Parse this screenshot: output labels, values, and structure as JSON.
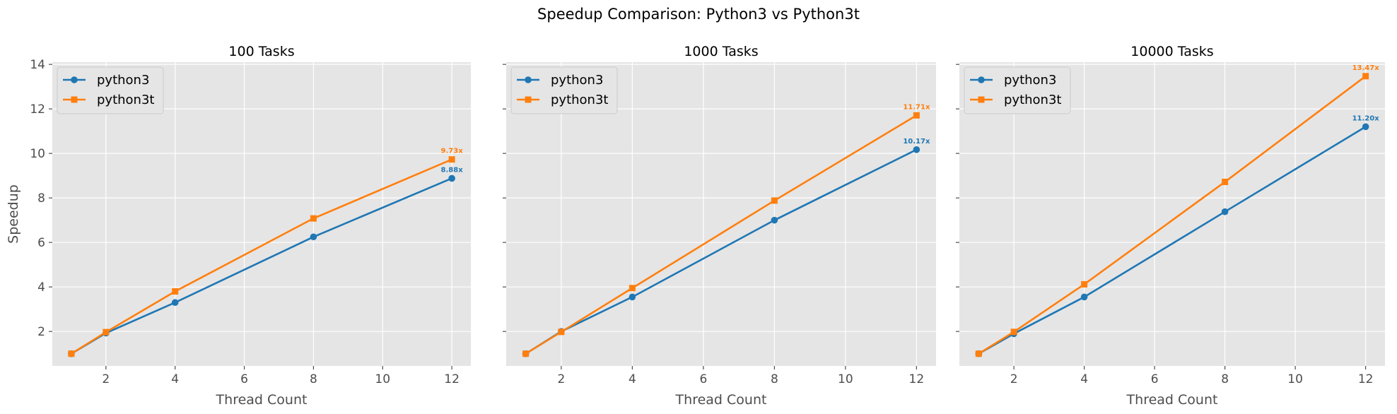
{
  "figure": {
    "title": "Speedup Comparison: Python3 vs Python3t"
  },
  "colors": {
    "python3": "#1f77b4",
    "python3t": "#ff7f0e",
    "plot_bg": "#e5e5e5",
    "grid": "#ffffff"
  },
  "chart_data": [
    {
      "type": "line",
      "title": "100 Tasks",
      "xlabel": "Thread Count",
      "ylabel": "Speedup",
      "x": [
        1,
        2,
        4,
        8,
        12
      ],
      "xlim": [
        0.45,
        12.55
      ],
      "ylim": [
        0.45,
        14.1
      ],
      "xticks": [
        2,
        4,
        6,
        8,
        10,
        12
      ],
      "yticks": [
        2,
        4,
        6,
        8,
        10,
        12,
        14
      ],
      "grid": true,
      "legend_position": "upper-left",
      "series": [
        {
          "name": "python3",
          "marker": "circle",
          "values": [
            1.0,
            1.93,
            3.3,
            6.25,
            8.88
          ],
          "end_label": "8.88x"
        },
        {
          "name": "python3t",
          "marker": "square",
          "values": [
            1.0,
            1.97,
            3.8,
            7.08,
            9.73
          ],
          "end_label": "9.73x"
        }
      ]
    },
    {
      "type": "line",
      "title": "1000 Tasks",
      "xlabel": "Thread Count",
      "ylabel": "",
      "x": [
        1,
        2,
        4,
        8,
        12
      ],
      "xlim": [
        0.45,
        12.55
      ],
      "ylim": [
        0.45,
        14.1
      ],
      "xticks": [
        2,
        4,
        6,
        8,
        10,
        12
      ],
      "yticks": [
        2,
        4,
        6,
        8,
        10,
        12,
        14
      ],
      "grid": true,
      "legend_position": "upper-left",
      "series": [
        {
          "name": "python3",
          "marker": "circle",
          "values": [
            1.0,
            2.0,
            3.55,
            7.0,
            10.17
          ],
          "end_label": "10.17x"
        },
        {
          "name": "python3t",
          "marker": "square",
          "values": [
            1.0,
            1.98,
            3.95,
            7.88,
            11.71
          ],
          "end_label": "11.71x"
        }
      ]
    },
    {
      "type": "line",
      "title": "10000 Tasks",
      "xlabel": "Thread Count",
      "ylabel": "",
      "x": [
        1,
        2,
        4,
        8,
        12
      ],
      "xlim": [
        0.45,
        12.55
      ],
      "ylim": [
        0.45,
        14.1
      ],
      "xticks": [
        2,
        4,
        6,
        8,
        10,
        12
      ],
      "yticks": [
        2,
        4,
        6,
        8,
        10,
        12,
        14
      ],
      "grid": true,
      "legend_position": "upper-left",
      "series": [
        {
          "name": "python3",
          "marker": "circle",
          "values": [
            1.0,
            1.9,
            3.55,
            7.38,
            11.2
          ],
          "end_label": "11.20x"
        },
        {
          "name": "python3t",
          "marker": "square",
          "values": [
            1.0,
            1.98,
            4.12,
            8.72,
            13.47
          ],
          "end_label": "13.47x"
        }
      ]
    }
  ]
}
